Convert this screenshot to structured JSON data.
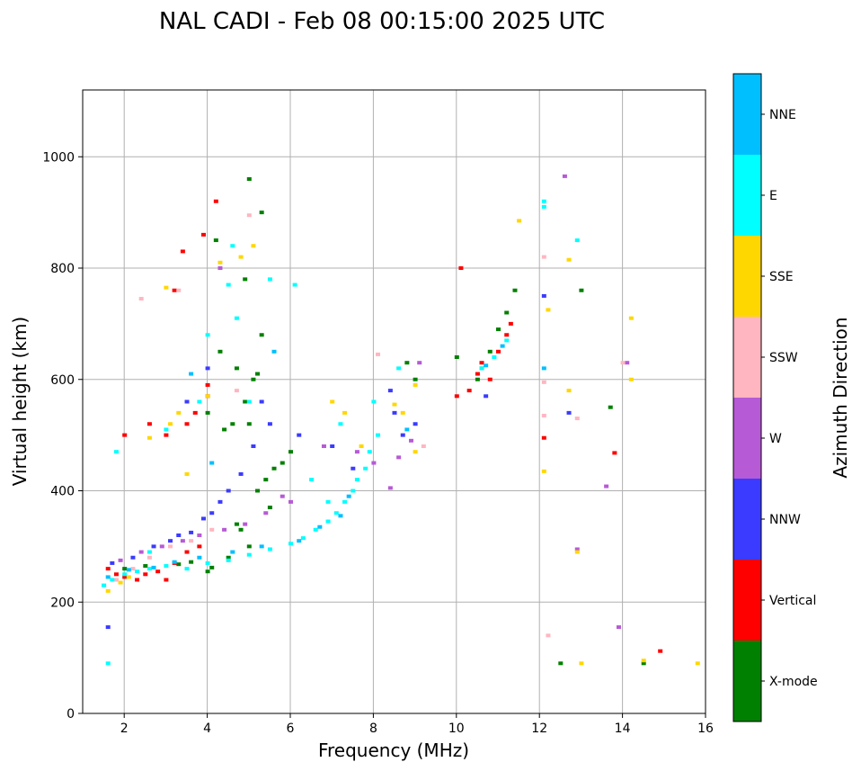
{
  "chart_data": {
    "type": "scatter",
    "title": "NAL CADI - Feb 08 00:15:00 2025 UTC",
    "xlabel": "Frequency (MHz)",
    "ylabel": "Virtual height (km)",
    "xlim": [
      1,
      16
    ],
    "ylim": [
      0,
      1120
    ],
    "xticks": [
      2,
      4,
      6,
      8,
      10,
      12,
      14,
      16
    ],
    "yticks": [
      0,
      200,
      400,
      600,
      800,
      1000
    ],
    "grid": true,
    "colorbar": {
      "label": "Azimuth Direction",
      "categories": [
        "X-mode",
        "Vertical",
        "NNW",
        "W",
        "SSW",
        "SSE",
        "E",
        "NNE"
      ],
      "colors": [
        "#008000",
        "#ff0000",
        "#3b3bff",
        "#b75ad6",
        "#ffb6c1",
        "#ffd700",
        "#00ffff",
        "#00bfff"
      ]
    },
    "series": [
      {
        "name": "X-mode",
        "color": "#008000",
        "points": [
          [
            2.0,
            260
          ],
          [
            2.5,
            265
          ],
          [
            3.3,
            268
          ],
          [
            3.6,
            272
          ],
          [
            4.0,
            255
          ],
          [
            4.1,
            262
          ],
          [
            4.5,
            280
          ],
          [
            4.8,
            330
          ],
          [
            5.0,
            300
          ],
          [
            5.2,
            400
          ],
          [
            5.4,
            420
          ],
          [
            5.6,
            440
          ],
          [
            5.8,
            450
          ],
          [
            6.0,
            470
          ],
          [
            5.0,
            520
          ],
          [
            4.9,
            560
          ],
          [
            5.1,
            600
          ],
          [
            4.7,
            620
          ],
          [
            4.3,
            650
          ],
          [
            4.0,
            540
          ],
          [
            5.3,
            680
          ],
          [
            4.6,
            520
          ],
          [
            4.4,
            510
          ],
          [
            10.0,
            640
          ],
          [
            10.5,
            600
          ],
          [
            10.6,
            620
          ],
          [
            10.8,
            650
          ],
          [
            11.0,
            690
          ],
          [
            11.2,
            720
          ],
          [
            11.4,
            760
          ],
          [
            12.5,
            90
          ],
          [
            14.5,
            90
          ],
          [
            13.0,
            760
          ],
          [
            13.7,
            550
          ],
          [
            9.0,
            600
          ],
          [
            8.8,
            630
          ],
          [
            4.7,
            340
          ],
          [
            5.5,
            370
          ],
          [
            5.2,
            610
          ],
          [
            5.0,
            960
          ],
          [
            4.2,
            850
          ],
          [
            5.3,
            900
          ],
          [
            4.9,
            780
          ]
        ]
      },
      {
        "name": "Vertical",
        "color": "#ff0000",
        "points": [
          [
            1.6,
            260
          ],
          [
            1.8,
            250
          ],
          [
            2.0,
            245
          ],
          [
            2.3,
            240
          ],
          [
            2.5,
            250
          ],
          [
            2.8,
            255
          ],
          [
            3.0,
            240
          ],
          [
            3.2,
            270
          ],
          [
            3.5,
            290
          ],
          [
            3.8,
            300
          ],
          [
            4.0,
            570
          ],
          [
            3.7,
            540
          ],
          [
            3.5,
            520
          ],
          [
            3.0,
            500
          ],
          [
            2.0,
            500
          ],
          [
            4.2,
            920
          ],
          [
            3.9,
            860
          ],
          [
            4.0,
            590
          ],
          [
            10.0,
            570
          ],
          [
            10.3,
            580
          ],
          [
            10.5,
            610
          ],
          [
            10.6,
            630
          ],
          [
            10.8,
            600
          ],
          [
            11.0,
            650
          ],
          [
            11.2,
            680
          ],
          [
            11.3,
            700
          ],
          [
            10.1,
            800
          ],
          [
            12.1,
            495
          ],
          [
            13.8,
            468
          ],
          [
            14.9,
            112
          ],
          [
            3.4,
            830
          ],
          [
            3.2,
            760
          ],
          [
            2.6,
            520
          ]
        ]
      },
      {
        "name": "NNW",
        "color": "#3b3bff",
        "points": [
          [
            1.7,
            270
          ],
          [
            2.2,
            280
          ],
          [
            2.7,
            300
          ],
          [
            3.1,
            310
          ],
          [
            3.3,
            320
          ],
          [
            3.6,
            325
          ],
          [
            3.9,
            350
          ],
          [
            4.1,
            360
          ],
          [
            4.3,
            380
          ],
          [
            4.5,
            400
          ],
          [
            4.8,
            430
          ],
          [
            5.1,
            480
          ],
          [
            5.5,
            520
          ],
          [
            6.2,
            500
          ],
          [
            7.0,
            480
          ],
          [
            8.5,
            540
          ],
          [
            8.7,
            500
          ],
          [
            9.0,
            520
          ],
          [
            8.4,
            580
          ],
          [
            10.7,
            570
          ],
          [
            12.1,
            750
          ],
          [
            12.7,
            540
          ],
          [
            1.6,
            155
          ],
          [
            4.0,
            620
          ],
          [
            3.5,
            560
          ],
          [
            5.3,
            560
          ],
          [
            7.5,
            440
          ]
        ]
      },
      {
        "name": "W",
        "color": "#b75ad6",
        "points": [
          [
            1.9,
            275
          ],
          [
            2.4,
            290
          ],
          [
            2.9,
            300
          ],
          [
            3.4,
            310
          ],
          [
            3.8,
            320
          ],
          [
            4.4,
            330
          ],
          [
            4.9,
            340
          ],
          [
            5.4,
            360
          ],
          [
            6.0,
            380
          ],
          [
            6.8,
            480
          ],
          [
            7.6,
            470
          ],
          [
            8.0,
            450
          ],
          [
            8.4,
            405
          ],
          [
            8.6,
            460
          ],
          [
            8.9,
            490
          ],
          [
            9.1,
            630
          ],
          [
            12.9,
            295
          ],
          [
            13.6,
            408
          ],
          [
            13.9,
            155
          ],
          [
            14.1,
            630
          ],
          [
            12.6,
            965
          ],
          [
            4.3,
            800
          ],
          [
            5.8,
            390
          ]
        ]
      },
      {
        "name": "SSW",
        "color": "#ffb6c1",
        "points": [
          [
            1.5,
            230
          ],
          [
            1.8,
            240
          ],
          [
            2.2,
            260
          ],
          [
            2.6,
            280
          ],
          [
            3.1,
            300
          ],
          [
            3.6,
            310
          ],
          [
            4.1,
            330
          ],
          [
            2.4,
            745
          ],
          [
            4.7,
            580
          ],
          [
            8.1,
            645
          ],
          [
            12.1,
            595
          ],
          [
            12.1,
            535
          ],
          [
            12.2,
            140
          ],
          [
            12.1,
            820
          ],
          [
            12.9,
            530
          ],
          [
            14.0,
            630
          ],
          [
            5.0,
            895
          ],
          [
            3.3,
            760
          ],
          [
            9.2,
            480
          ]
        ]
      },
      {
        "name": "SSE",
        "color": "#ffd700",
        "points": [
          [
            1.6,
            220
          ],
          [
            1.9,
            235
          ],
          [
            2.1,
            245
          ],
          [
            2.6,
            495
          ],
          [
            3.0,
            765
          ],
          [
            3.3,
            540
          ],
          [
            3.5,
            430
          ],
          [
            4.0,
            570
          ],
          [
            4.3,
            810
          ],
          [
            4.8,
            820
          ],
          [
            5.1,
            840
          ],
          [
            7.3,
            540
          ],
          [
            7.7,
            480
          ],
          [
            8.5,
            555
          ],
          [
            8.7,
            540
          ],
          [
            9.0,
            470
          ],
          [
            9.0,
            590
          ],
          [
            11.5,
            885
          ],
          [
            12.2,
            725
          ],
          [
            12.1,
            435
          ],
          [
            12.7,
            815
          ],
          [
            12.7,
            580
          ],
          [
            12.9,
            290
          ],
          [
            13.0,
            90
          ],
          [
            14.2,
            710
          ],
          [
            14.2,
            600
          ],
          [
            14.5,
            95
          ],
          [
            15.8,
            90
          ],
          [
            3.1,
            520
          ],
          [
            7.0,
            560
          ]
        ]
      },
      {
        "name": "E",
        "color": "#00ffff",
        "points": [
          [
            1.5,
            230
          ],
          [
            1.7,
            240
          ],
          [
            2.0,
            250
          ],
          [
            2.3,
            255
          ],
          [
            2.6,
            260
          ],
          [
            3.0,
            265
          ],
          [
            3.5,
            260
          ],
          [
            4.0,
            270
          ],
          [
            4.5,
            275
          ],
          [
            5.0,
            285
          ],
          [
            5.5,
            295
          ],
          [
            6.0,
            305
          ],
          [
            6.3,
            315
          ],
          [
            6.6,
            330
          ],
          [
            6.9,
            345
          ],
          [
            7.1,
            360
          ],
          [
            7.3,
            380
          ],
          [
            7.5,
            400
          ],
          [
            7.6,
            420
          ],
          [
            7.8,
            440
          ],
          [
            7.9,
            470
          ],
          [
            8.1,
            500
          ],
          [
            8.0,
            560
          ],
          [
            8.6,
            620
          ],
          [
            3.0,
            510
          ],
          [
            4.0,
            680
          ],
          [
            4.5,
            770
          ],
          [
            4.7,
            710
          ],
          [
            3.8,
            560
          ],
          [
            5.5,
            780
          ],
          [
            6.1,
            770
          ],
          [
            7.2,
            520
          ],
          [
            6.9,
            380
          ],
          [
            1.6,
            90
          ],
          [
            1.8,
            470
          ],
          [
            12.1,
            920
          ],
          [
            12.1,
            910
          ],
          [
            12.9,
            850
          ],
          [
            10.6,
            620
          ],
          [
            10.9,
            640
          ],
          [
            11.2,
            670
          ],
          [
            4.6,
            840
          ],
          [
            5.0,
            560
          ],
          [
            6.5,
            420
          ],
          [
            2.6,
            290
          ]
        ]
      },
      {
        "name": "NNE",
        "color": "#00bfff",
        "points": [
          [
            1.6,
            245
          ],
          [
            2.1,
            258
          ],
          [
            2.7,
            262
          ],
          [
            3.2,
            272
          ],
          [
            3.8,
            280
          ],
          [
            4.6,
            290
          ],
          [
            5.3,
            300
          ],
          [
            6.2,
            310
          ],
          [
            6.7,
            335
          ],
          [
            7.2,
            355
          ],
          [
            7.4,
            390
          ],
          [
            8.8,
            510
          ],
          [
            10.7,
            625
          ],
          [
            11.1,
            660
          ],
          [
            12.1,
            620
          ],
          [
            4.1,
            450
          ],
          [
            5.6,
            650
          ],
          [
            3.6,
            610
          ]
        ]
      }
    ]
  }
}
